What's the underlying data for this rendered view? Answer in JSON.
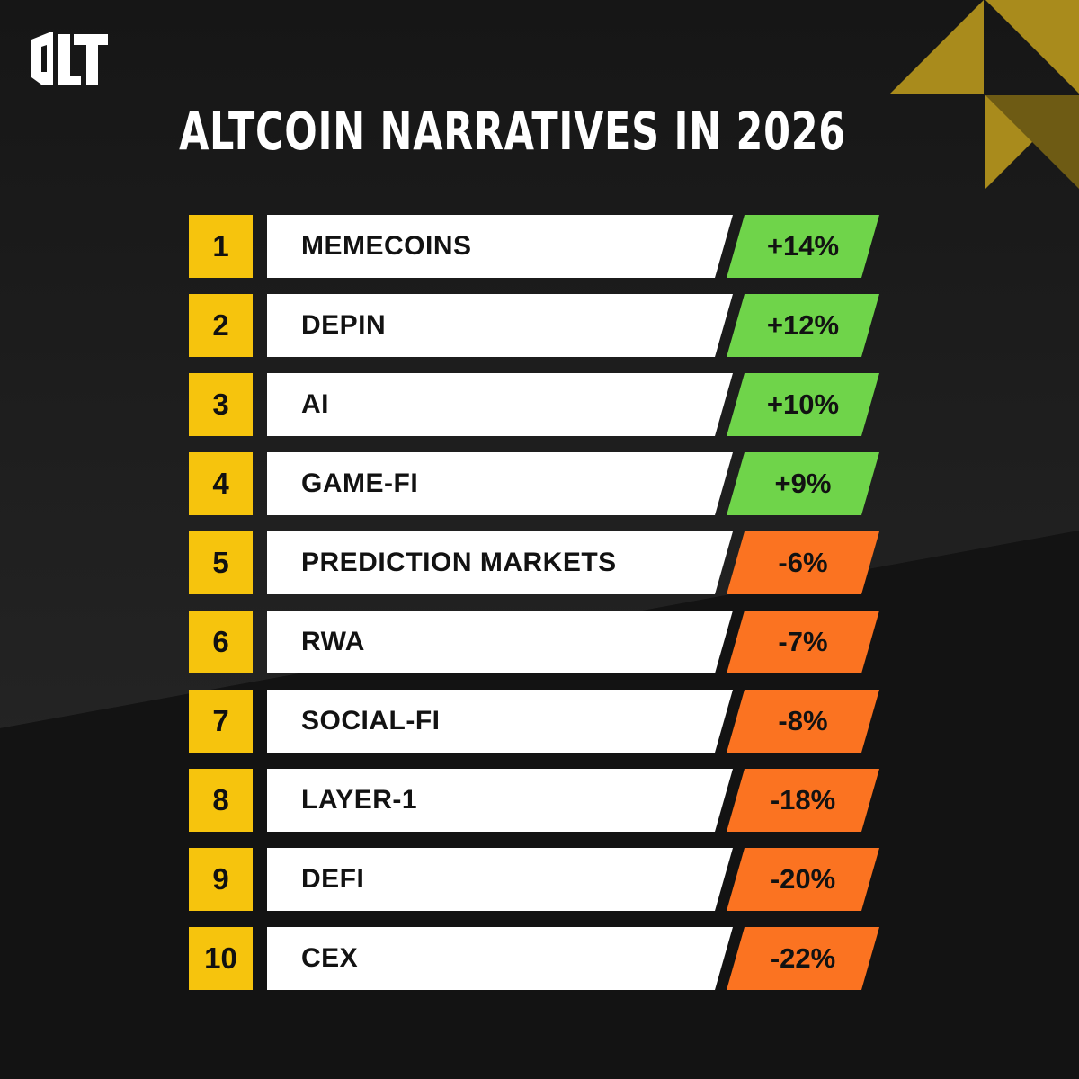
{
  "title": "ALTCOIN NARRATIVES IN 2026",
  "logo": {
    "icon": "dlt-logo-icon"
  },
  "colors": {
    "background": "#141414",
    "rank_badge": "#f6c40d",
    "label_box": "#ffffff",
    "positive": "#6fd44a",
    "negative": "#fb7321",
    "accent_gold": "#a98b1c"
  },
  "rankings": [
    {
      "rank": "1",
      "label": "MEMECOINS",
      "change": "+14%",
      "trend": "up"
    },
    {
      "rank": "2",
      "label": "DEPIN",
      "change": "+12%",
      "trend": "up"
    },
    {
      "rank": "3",
      "label": "AI",
      "change": "+10%",
      "trend": "up"
    },
    {
      "rank": "4",
      "label": "GAME-FI",
      "change": "+9%",
      "trend": "up"
    },
    {
      "rank": "5",
      "label": "PREDICTION MARKETS",
      "change": "-6%",
      "trend": "down"
    },
    {
      "rank": "6",
      "label": "RWA",
      "change": "-7%",
      "trend": "down"
    },
    {
      "rank": "7",
      "label": "SOCIAL-FI",
      "change": "-8%",
      "trend": "down"
    },
    {
      "rank": "8",
      "label": "LAYER-1",
      "change": "-18%",
      "trend": "down"
    },
    {
      "rank": "9",
      "label": "DEFI",
      "change": "-20%",
      "trend": "down"
    },
    {
      "rank": "10",
      "label": "CEX",
      "change": "-22%",
      "trend": "down"
    }
  ]
}
